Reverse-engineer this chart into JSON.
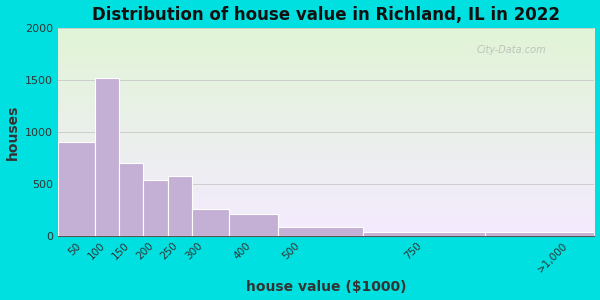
{
  "title": "Distribution of house value in Richland, IL in 2022",
  "xlabel": "house value ($1000)",
  "ylabel": "houses",
  "bin_edges": [
    0,
    75,
    125,
    175,
    225,
    275,
    350,
    450,
    625,
    875,
    1100
  ],
  "tick_positions": [
    50,
    100,
    150,
    200,
    250,
    300,
    400,
    500,
    750,
    1050
  ],
  "tick_labels": [
    "50",
    "100",
    "150",
    "200",
    "250",
    "300",
    "400",
    "500",
    "750",
    ">1,000"
  ],
  "values": [
    900,
    1520,
    700,
    535,
    575,
    260,
    215,
    90,
    35,
    35
  ],
  "bar_color": "#c4b0d5",
  "bar_edgecolor": "#ffffff",
  "ylim": [
    0,
    2000
  ],
  "yticks": [
    0,
    500,
    1000,
    1500,
    2000
  ],
  "bg_outer": "#00e0e0",
  "title_fontsize": 12,
  "axis_label_fontsize": 10,
  "watermark": "City-Data.com"
}
